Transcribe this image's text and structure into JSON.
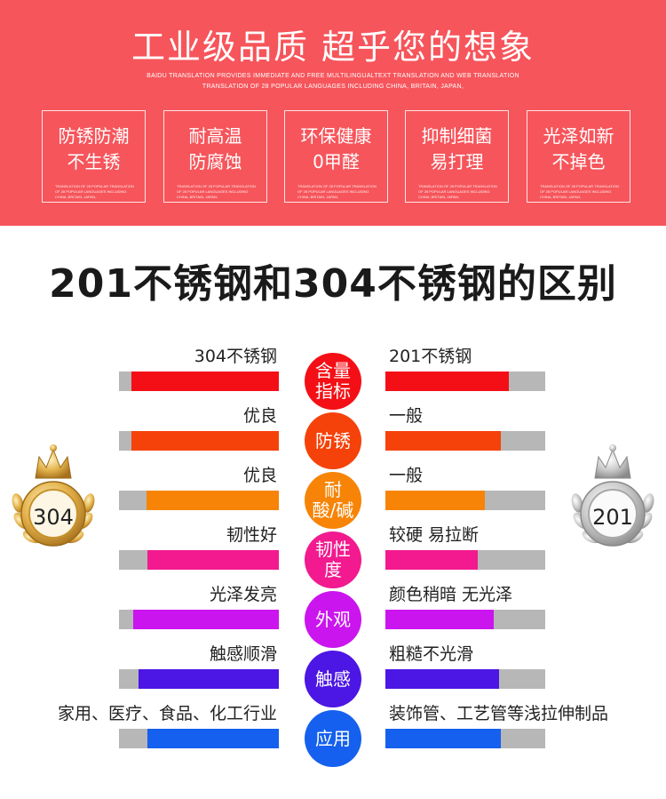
{
  "banner": {
    "title": "工业级品质 超乎您的想象",
    "sub_line_1": "BAIDU TRANSLATION PROVIDES IMMEDIATE AND FREE MULTILINGUALTEXT TRANSLATION AND WEB TRANSLATION",
    "sub_line_2": "TRANSLATION OF 28 POPULAR LANGUAGES INCLUDING CHINA, BRITAIN, JAPAN,",
    "features": [
      {
        "line1": "防锈防潮",
        "line2": "不生锈"
      },
      {
        "line1": "耐高温",
        "line2": "防腐蚀"
      },
      {
        "line1": "环保健康",
        "line2": "0甲醛"
      },
      {
        "line1": "抑制细菌",
        "line2": "易打理"
      },
      {
        "line1": "光泽如新",
        "line2": "不掉色"
      }
    ],
    "feature_fine_print": "TRANSLATION OF 28 POPULAR TRANSLATION OF 28 POPULAR LANGUAGES INCLUDING CHINA, BRITAIN, JAPAN,"
  },
  "main_title": "201不锈钢和304不锈钢的区别",
  "medals": {
    "left": "304",
    "right": "201"
  },
  "colors": {
    "banner": "#f6555b",
    "track": "#b7b7b7",
    "gold": "#e3b24a",
    "silver": "#c9c9c9"
  },
  "rows": [
    {
      "category": "含量指标",
      "cat_line1": "含量",
      "cat_line2": "指标",
      "color": "#f40f16",
      "left_label": "304不锈钢",
      "right_label": "201不锈钢",
      "left_fill": 0.92,
      "right_fill": 0.77
    },
    {
      "category": "防锈",
      "cat_line1": "防锈",
      "cat_line2": "",
      "color": "#f5420a",
      "left_label": "优良",
      "right_label": "一般",
      "left_fill": 0.92,
      "right_fill": 0.72
    },
    {
      "category": "耐酸/碱",
      "cat_line1": "耐",
      "cat_line2": "酸/碱",
      "color": "#f78406",
      "left_label": "优良",
      "right_label": "一般",
      "left_fill": 0.83,
      "right_fill": 0.62
    },
    {
      "category": "韧性度",
      "cat_line1": "韧性",
      "cat_line2": "度",
      "color": "#f21a8e",
      "left_label": "韧性好",
      "right_label": "较硬 易拉断",
      "left_fill": 0.82,
      "right_fill": 0.58
    },
    {
      "category": "外观",
      "cat_line1": "外观",
      "cat_line2": "",
      "color": "#cb15ee",
      "left_label": "光泽发亮",
      "right_label": "颜色稍暗 无光泽",
      "left_fill": 0.91,
      "right_fill": 0.68
    },
    {
      "category": "触感",
      "cat_line1": "触感",
      "cat_line2": "",
      "color": "#4c16e4",
      "left_label": "触感顺滑",
      "right_label": "粗糙不光滑",
      "left_fill": 0.88,
      "right_fill": 0.71
    },
    {
      "category": "应用",
      "cat_line1": "应用",
      "cat_line2": "",
      "color": "#1560ee",
      "left_label": "家用、医疗、食品、化工行业",
      "right_label": "装饰管、工艺管等浅拉伸制品",
      "left_fill": 0.82,
      "right_fill": 0.72
    }
  ]
}
